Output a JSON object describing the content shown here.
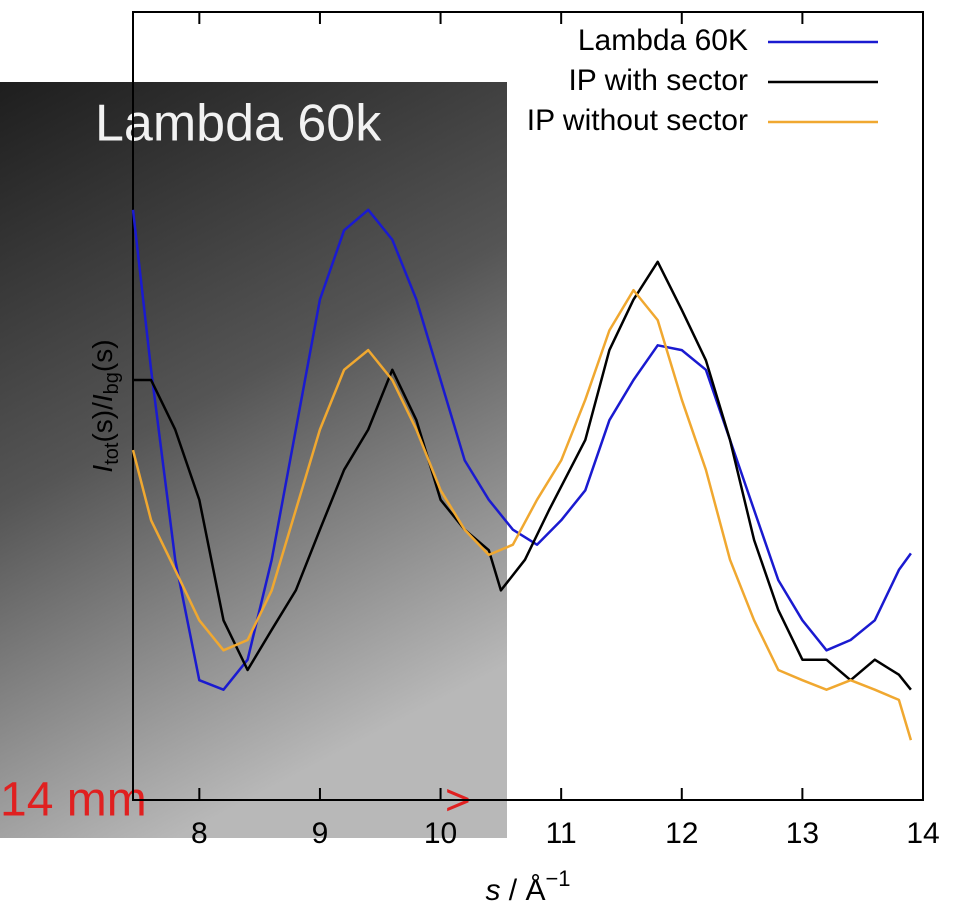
{
  "chart_data": {
    "type": "line",
    "x_label": [
      "s",
      " / Å",
      "−1"
    ],
    "y_label": [
      "I",
      "tot",
      "(s)/",
      "I",
      "bg",
      "(s)"
    ],
    "image_texts": [
      "Lambda 60k",
      "14 mm",
      ">"
    ],
    "xlim": [
      7.45,
      14
    ],
    "ylim": [
      0,
      100
    ],
    "xticks": [
      8,
      9,
      10,
      11,
      12,
      13,
      14
    ],
    "legend": "upper right",
    "series": [
      {
        "name": "Lambda 60K",
        "color": "#1a1ad0",
        "x": [
          7.45,
          7.6,
          7.8,
          8.0,
          8.2,
          8.4,
          8.6,
          8.8,
          9.0,
          9.2,
          9.4,
          9.6,
          9.8,
          10.0,
          10.2,
          10.4,
          10.6,
          10.8,
          11.0,
          11.2,
          11.4,
          11.6,
          11.8,
          12.0,
          12.2,
          12.4,
          12.6,
          12.8,
          13.0,
          13.2,
          13.4,
          13.6,
          13.8,
          13.9
        ],
        "values": [
          74.9,
          54.6,
          30.5,
          15.2,
          14.0,
          17.8,
          30.5,
          47.0,
          63.5,
          72.3,
          74.9,
          71.1,
          63.5,
          53.3,
          43.1,
          38.1,
          34.3,
          32.4,
          35.5,
          39.3,
          48.2,
          53.3,
          57.7,
          57.1,
          54.6,
          45.7,
          36.8,
          27.9,
          22.8,
          19.0,
          20.3,
          22.8,
          29.2,
          31.3
        ]
      },
      {
        "name": "IP with sector",
        "color": "#000000",
        "x": [
          7.45,
          7.6,
          7.8,
          8.0,
          8.2,
          8.4,
          8.6,
          8.8,
          9.0,
          9.2,
          9.4,
          9.6,
          9.8,
          10.0,
          10.2,
          10.4,
          10.5,
          10.7,
          10.9,
          11.2,
          11.4,
          11.6,
          11.8,
          12.0,
          12.2,
          12.4,
          12.6,
          12.8,
          13.0,
          13.2,
          13.4,
          13.6,
          13.8,
          13.9
        ],
        "values": [
          53.3,
          53.3,
          47.0,
          38.1,
          22.8,
          16.5,
          21.6,
          26.6,
          34.3,
          41.9,
          47.0,
          54.6,
          48.2,
          38.1,
          34.3,
          31.7,
          26.6,
          30.5,
          36.8,
          45.7,
          57.1,
          63.5,
          68.3,
          62.2,
          55.8,
          45.7,
          33.0,
          24.1,
          17.8,
          17.8,
          15.2,
          17.8,
          15.9,
          14.0
        ]
      },
      {
        "name": "IP without sector",
        "color": "#f0a830",
        "x": [
          7.45,
          7.6,
          7.8,
          8.0,
          8.2,
          8.4,
          8.6,
          8.8,
          9.0,
          9.2,
          9.4,
          9.6,
          9.8,
          10.0,
          10.2,
          10.4,
          10.6,
          10.8,
          11.0,
          11.2,
          11.4,
          11.6,
          11.8,
          12.0,
          12.2,
          12.4,
          12.6,
          12.8,
          13.0,
          13.2,
          13.4,
          13.6,
          13.8,
          13.9
        ],
        "values": [
          44.4,
          35.5,
          29.2,
          22.8,
          19.0,
          20.3,
          26.6,
          36.8,
          47.0,
          54.6,
          57.1,
          53.3,
          47.0,
          39.3,
          34.3,
          31.1,
          32.4,
          38.1,
          43.1,
          50.8,
          59.6,
          64.7,
          60.9,
          50.8,
          41.9,
          30.5,
          22.8,
          16.5,
          15.2,
          14.0,
          15.2,
          14.0,
          12.7,
          7.6
        ]
      }
    ]
  }
}
